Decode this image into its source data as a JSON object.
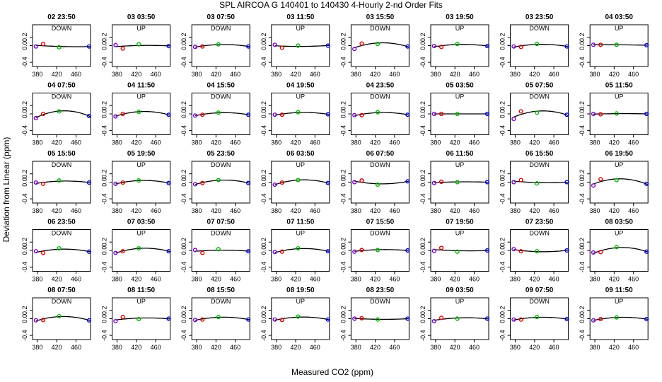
{
  "title": "SPL   AIRCOA G   140401 to 140430   4-Hourly 2-nd Order Fits",
  "xlabel": "Measured CO2 (ppm)",
  "ylabel": "Deviation from Linear (ppm)",
  "colors": {
    "axis": "#000000",
    "curve": "#000000",
    "pt1": "#7a00d6",
    "pt2": "#e00000",
    "pt3": "#00b800",
    "pt4": "#0000e0"
  },
  "chart_data": {
    "type": "scatter",
    "xlim": [
      370,
      490
    ],
    "ylim": [
      -0.5,
      0.5
    ],
    "xticks": [
      380,
      420,
      460
    ],
    "yticks": [
      -0.4,
      0.0,
      0.2
    ],
    "x_points": [
      377,
      392,
      425,
      487
    ],
    "point_colors": [
      "#7a00d6",
      "#e00000",
      "#00b800",
      "#0000e0"
    ],
    "panels": [
      {
        "title": "02 23:50",
        "mode": "DOWN",
        "y": [
          -0.02,
          0.04,
          -0.04,
          -0.02
        ]
      },
      {
        "title": "03 03:50",
        "mode": "UP",
        "y": [
          0.01,
          -0.07,
          0.03,
          -0.01
        ]
      },
      {
        "title": "03 07:50",
        "mode": "DOWN",
        "y": [
          -0.03,
          -0.02,
          0.03,
          -0.02
        ]
      },
      {
        "title": "03 11:50",
        "mode": "UP",
        "y": [
          0.02,
          -0.05,
          0.0,
          0.0
        ]
      },
      {
        "title": "03 15:50",
        "mode": "DOWN",
        "y": [
          -0.08,
          0.05,
          0.04,
          -0.02
        ]
      },
      {
        "title": "03 19:50",
        "mode": "UP",
        "y": [
          -0.01,
          -0.03,
          0.04,
          -0.01
        ]
      },
      {
        "title": "03 23:50",
        "mode": "DOWN",
        "y": [
          -0.02,
          -0.03,
          0.04,
          -0.02
        ]
      },
      {
        "title": "04 03:50",
        "mode": "UP",
        "y": [
          0.02,
          0.02,
          0.02,
          0.01
        ]
      },
      {
        "title": "04 07:50",
        "mode": "DOWN",
        "y": [
          -0.1,
          0.0,
          0.06,
          -0.05
        ]
      },
      {
        "title": "04 11:50",
        "mode": "UP",
        "y": [
          -0.06,
          0.0,
          0.05,
          -0.02
        ]
      },
      {
        "title": "04 15:50",
        "mode": "DOWN",
        "y": [
          -0.04,
          -0.02,
          0.03,
          -0.02
        ]
      },
      {
        "title": "04 19:50",
        "mode": "UP",
        "y": [
          -0.02,
          -0.02,
          0.04,
          -0.01
        ]
      },
      {
        "title": "04 23:50",
        "mode": "DOWN",
        "y": [
          -0.03,
          -0.03,
          0.04,
          -0.02
        ]
      },
      {
        "title": "05 03:50",
        "mode": "UP",
        "y": [
          0.0,
          0.0,
          0.0,
          0.0
        ]
      },
      {
        "title": "05 07:50",
        "mode": "DOWN",
        "y": [
          -0.12,
          0.06,
          0.03,
          -0.02
        ]
      },
      {
        "title": "05 11:50",
        "mode": "UP",
        "y": [
          0.0,
          -0.01,
          0.01,
          0.0
        ]
      },
      {
        "title": "05 15:50",
        "mode": "DOWN",
        "y": [
          -0.01,
          -0.04,
          0.04,
          -0.01
        ]
      },
      {
        "title": "05 19:50",
        "mode": "UP",
        "y": [
          -0.04,
          -0.01,
          0.04,
          -0.02
        ]
      },
      {
        "title": "05 23:50",
        "mode": "DOWN",
        "y": [
          -0.05,
          -0.02,
          0.05,
          -0.02
        ]
      },
      {
        "title": "06 03:50",
        "mode": "UP",
        "y": [
          -0.06,
          -0.01,
          0.05,
          -0.02
        ]
      },
      {
        "title": "06 07:50",
        "mode": "DOWN",
        "y": [
          0.0,
          0.04,
          -0.06,
          0.02
        ]
      },
      {
        "title": "06 11:50",
        "mode": "UP",
        "y": [
          -0.02,
          0.01,
          0.0,
          0.0
        ]
      },
      {
        "title": "06 15:50",
        "mode": "DOWN",
        "y": [
          0.0,
          0.05,
          -0.03,
          0.0
        ]
      },
      {
        "title": "06 19:50",
        "mode": "UP",
        "y": [
          -0.08,
          0.07,
          0.05,
          -0.04
        ]
      },
      {
        "title": "06 23:50",
        "mode": "DOWN",
        "y": [
          -0.02,
          -0.06,
          0.05,
          -0.03
        ]
      },
      {
        "title": "07 03:50",
        "mode": "UP",
        "y": [
          -0.06,
          -0.02,
          0.05,
          -0.02
        ]
      },
      {
        "title": "07 07:50",
        "mode": "DOWN",
        "y": [
          0.01,
          -0.06,
          0.03,
          -0.02
        ]
      },
      {
        "title": "07 11:50",
        "mode": "UP",
        "y": [
          -0.04,
          -0.03,
          0.05,
          -0.02
        ]
      },
      {
        "title": "07 15:50",
        "mode": "DOWN",
        "y": [
          -0.03,
          0.01,
          0.01,
          0.0
        ]
      },
      {
        "title": "07 19:50",
        "mode": "UP",
        "y": [
          -0.01,
          0.06,
          -0.03,
          0.0
        ]
      },
      {
        "title": "07 23:50",
        "mode": "DOWN",
        "y": [
          0.03,
          -0.02,
          -0.02,
          0.0
        ]
      },
      {
        "title": "08 03:50",
        "mode": "UP",
        "y": [
          -0.05,
          -0.04,
          0.08,
          -0.03
        ]
      },
      {
        "title": "08 07:50",
        "mode": "DOWN",
        "y": [
          -0.04,
          -0.03,
          0.06,
          -0.04
        ]
      },
      {
        "title": "08 11:50",
        "mode": "UP",
        "y": [
          -0.06,
          0.04,
          -0.01,
          0.0
        ]
      },
      {
        "title": "08 15:50",
        "mode": "DOWN",
        "y": [
          -0.03,
          -0.02,
          0.04,
          -0.02
        ]
      },
      {
        "title": "08 19:50",
        "mode": "UP",
        "y": [
          -0.02,
          -0.03,
          0.05,
          -0.02
        ]
      },
      {
        "title": "08 23:50",
        "mode": "DOWN",
        "y": [
          0.0,
          0.01,
          -0.02,
          0.0
        ]
      },
      {
        "title": "09 03:50",
        "mode": "UP",
        "y": [
          -0.06,
          0.02,
          0.0,
          0.0
        ]
      },
      {
        "title": "09 07:50",
        "mode": "DOWN",
        "y": [
          -0.02,
          -0.02,
          0.04,
          -0.01
        ]
      },
      {
        "title": "09 11:50",
        "mode": "UP",
        "y": [
          -0.04,
          -0.01,
          0.03,
          -0.01
        ]
      }
    ]
  }
}
